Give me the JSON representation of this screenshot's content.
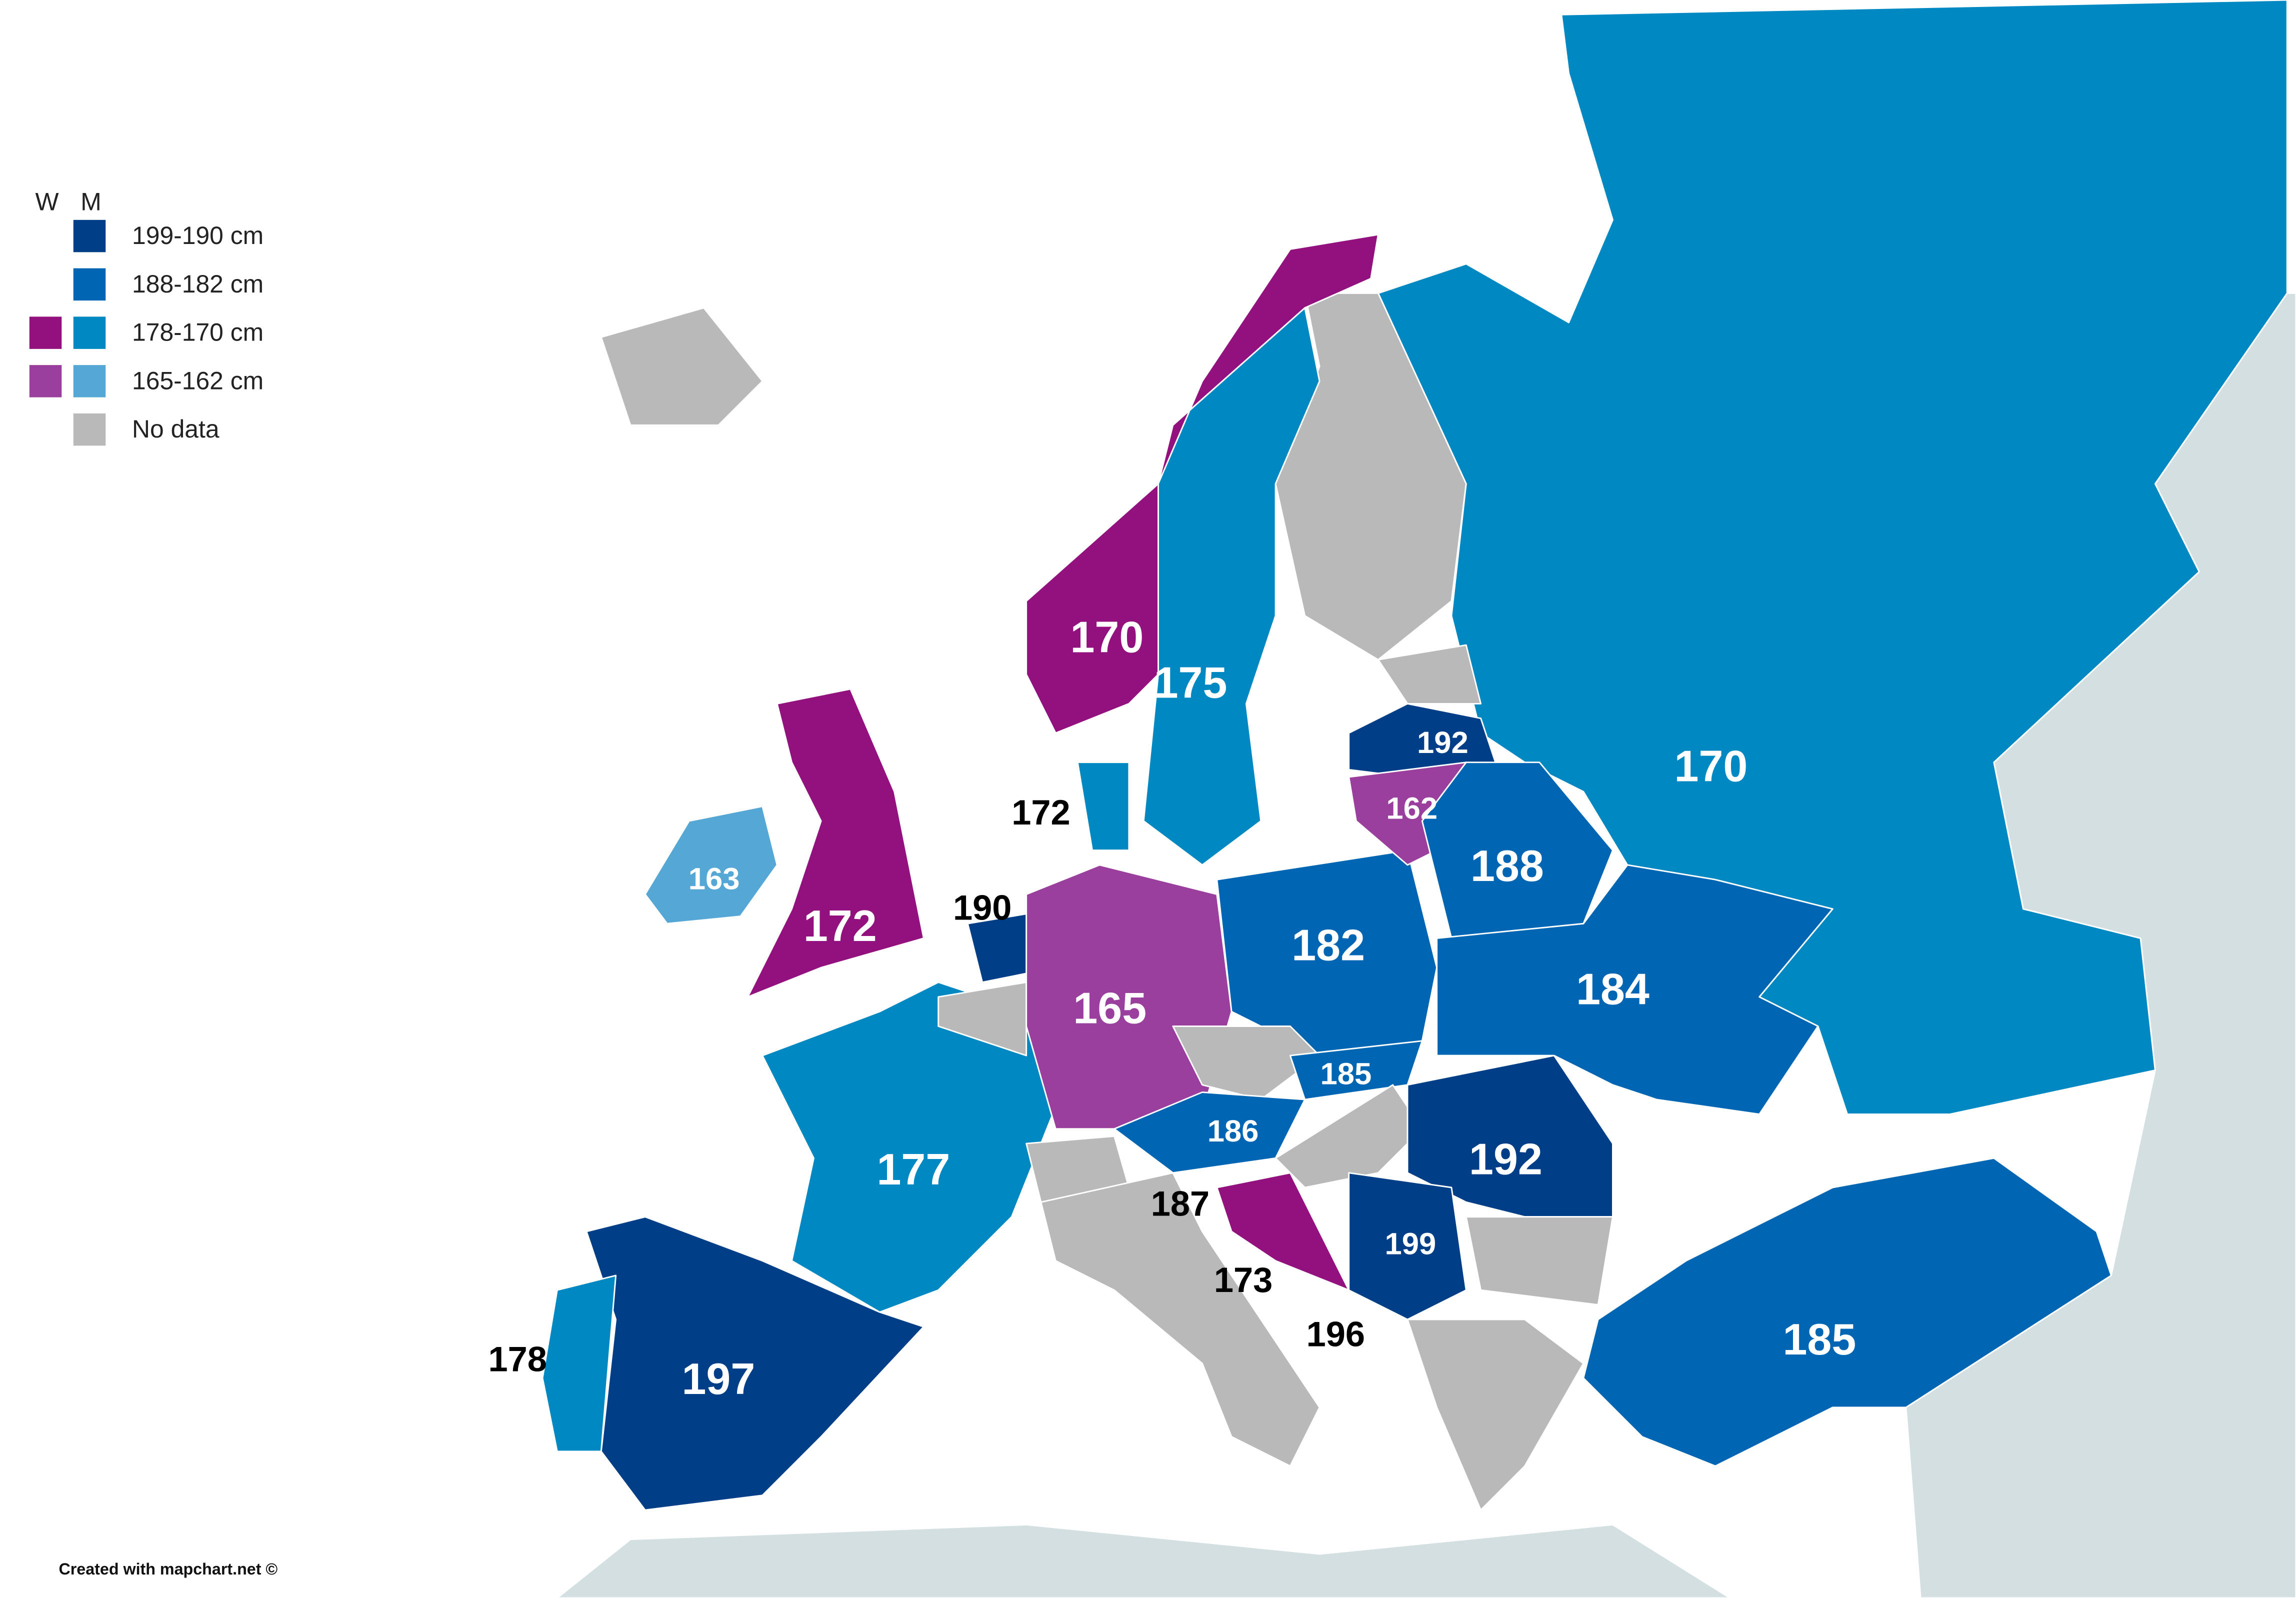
{
  "legend": {
    "headers": [
      "W",
      "M"
    ],
    "items": [
      "199-190 cm",
      "188-182 cm",
      "178-170 cm",
      "165-162 cm",
      "No data"
    ]
  },
  "labels": [
    170,
    175,
    192,
    170,
    162,
    188,
    172,
    163,
    172,
    190,
    182,
    184,
    165,
    185,
    186,
    192,
    177,
    187,
    199,
    173,
    196,
    178,
    197,
    185
  ],
  "credit": "Created with mapchart.net ©"
}
